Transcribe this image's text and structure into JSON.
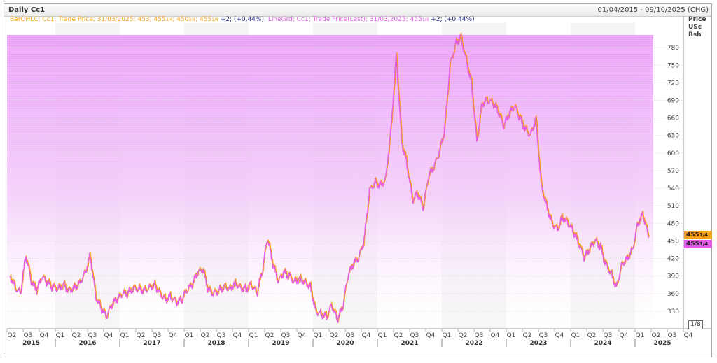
{
  "header": {
    "title": "Daily Cc1",
    "date_range": "01/04/2015 - 09/10/2025 (CHG)"
  },
  "legend": {
    "part1": "BarOHLC; Cc1; Trade Price; 31/03/2025; 453; 455",
    "frac1": "3/4",
    "part2": "; 450",
    "frac2": "3/4",
    "part3": "; 455",
    "frac3": "1/4",
    "change1": " +2; (+0,44%);",
    "part4": " LineGrd; Cc1; Trade Price(Last); 31/03/2025; 455",
    "frac4": "1/4",
    "change2": "+2; (+0,44%)"
  },
  "axis_header": {
    "line1": "Price",
    "line2": "USc",
    "line3": "Bsh"
  },
  "last_price_tags": [
    {
      "whole": "455",
      "frac": "1/4"
    },
    {
      "whole": "455",
      "frac": "1/4"
    }
  ],
  "fraction_button": "1/8",
  "colors": {
    "bar_ohlc": "#f7a21a",
    "line_grd": "#e35be8",
    "gradient_top": "#e99af7",
    "change_text": "#1a237e",
    "grid": "#e6e6e6"
  },
  "chart_data": {
    "type": "line",
    "ylabel": "Price USc Bsh",
    "ylim": [
      300,
      822
    ],
    "yticks": [
      330,
      360,
      390,
      420,
      450,
      480,
      510,
      540,
      570,
      600,
      630,
      660,
      690,
      720,
      750,
      780
    ],
    "quarter_labels": [
      "Q2",
      "Q3",
      "Q4",
      "Q1",
      "Q2",
      "Q3",
      "Q4",
      "Q1",
      "Q2",
      "Q3",
      "Q4",
      "Q1",
      "Q2",
      "Q3",
      "Q4",
      "Q1",
      "Q2",
      "Q3",
      "Q4",
      "Q1",
      "Q2",
      "Q3",
      "Q4",
      "Q1",
      "Q2",
      "Q3",
      "Q4",
      "Q1",
      "Q2",
      "Q3",
      "Q4",
      "Q1",
      "Q2",
      "Q3",
      "Q4",
      "Q1",
      "Q2",
      "Q3",
      "Q4",
      "Q1",
      "Q2",
      "Q3",
      "Q4"
    ],
    "years": [
      "2015",
      "2016",
      "2017",
      "2018",
      "2019",
      "2020",
      "2021",
      "2022",
      "2023",
      "2024",
      "2025"
    ],
    "series": [
      {
        "name": "LineGrd; Cc1; Trade Price(Last)",
        "x": [
          "2015-04",
          "2015-05",
          "2015-06",
          "2015-07",
          "2015-08",
          "2015-09",
          "2015-10",
          "2015-11",
          "2015-12",
          "2016-01",
          "2016-02",
          "2016-03",
          "2016-04",
          "2016-05",
          "2016-06",
          "2016-07",
          "2016-08",
          "2016-09",
          "2016-10",
          "2016-11",
          "2016-12",
          "2017-01",
          "2017-02",
          "2017-03",
          "2017-04",
          "2017-05",
          "2017-06",
          "2017-07",
          "2017-08",
          "2017-09",
          "2017-10",
          "2017-11",
          "2017-12",
          "2018-01",
          "2018-02",
          "2018-03",
          "2018-04",
          "2018-05",
          "2018-06",
          "2018-07",
          "2018-08",
          "2018-09",
          "2018-10",
          "2018-11",
          "2018-12",
          "2019-01",
          "2019-02",
          "2019-03",
          "2019-04",
          "2019-05",
          "2019-06",
          "2019-07",
          "2019-08",
          "2019-09",
          "2019-10",
          "2019-11",
          "2019-12",
          "2020-01",
          "2020-02",
          "2020-03",
          "2020-04",
          "2020-05",
          "2020-06",
          "2020-07",
          "2020-08",
          "2020-09",
          "2020-10",
          "2020-11",
          "2020-12",
          "2021-01",
          "2021-02",
          "2021-03",
          "2021-04",
          "2021-05",
          "2021-06",
          "2021-07",
          "2021-08",
          "2021-09",
          "2021-10",
          "2021-11",
          "2021-12",
          "2022-01",
          "2022-02",
          "2022-03",
          "2022-04",
          "2022-05",
          "2022-06",
          "2022-07",
          "2022-08",
          "2022-09",
          "2022-10",
          "2022-11",
          "2022-12",
          "2023-01",
          "2023-02",
          "2023-03",
          "2023-04",
          "2023-05",
          "2023-06",
          "2023-07",
          "2023-08",
          "2023-09",
          "2023-10",
          "2023-11",
          "2023-12",
          "2024-01",
          "2024-02",
          "2024-03",
          "2024-04",
          "2024-05",
          "2024-06",
          "2024-07",
          "2024-08",
          "2024-09",
          "2024-10",
          "2024-11",
          "2024-12",
          "2025-01",
          "2025-02",
          "2025-03"
        ],
        "values": [
          392,
          370,
          360,
          425,
          380,
          365,
          388,
          378,
          370,
          368,
          375,
          365,
          370,
          378,
          395,
          425,
          355,
          335,
          320,
          340,
          350,
          358,
          360,
          368,
          368,
          365,
          370,
          375,
          360,
          350,
          355,
          345,
          348,
          365,
          375,
          395,
          400,
          365,
          360,
          365,
          372,
          368,
          378,
          370,
          368,
          375,
          360,
          395,
          455,
          410,
          380,
          395,
          390,
          380,
          385,
          380,
          372,
          330,
          325,
          320,
          340,
          315,
          335,
          390,
          410,
          420,
          450,
          535,
          550,
          545,
          555,
          640,
          768,
          620,
          580,
          520,
          530,
          505,
          560,
          575,
          600,
          640,
          750,
          785,
          800,
          760,
          720,
          620,
          685,
          690,
          685,
          670,
          645,
          665,
          680,
          660,
          640,
          630,
          660,
          545,
          510,
          480,
          470,
          490,
          480,
          465,
          445,
          420,
          435,
          450,
          440,
          410,
          395,
          370,
          410,
          420,
          435,
          480,
          495,
          455
        ]
      }
    ]
  }
}
